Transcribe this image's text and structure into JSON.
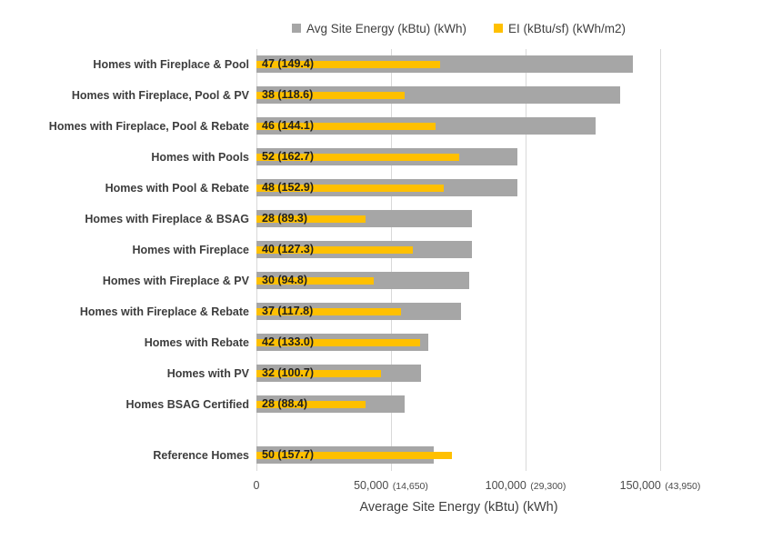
{
  "colors": {
    "site_energy_bar": "#a6a6a6",
    "ei_bar": "#ffc000",
    "gridline": "#d9d9d9",
    "text": "#404040"
  },
  "chart_data": {
    "type": "bar",
    "orientation": "horizontal",
    "xlabel": "Average Site Energy (kBtu) (kWh)",
    "legend_position": "top",
    "grid": true,
    "legend": [
      {
        "label": "Avg Site Energy (kBtu) (kWh)",
        "color": "#a6a6a6"
      },
      {
        "label": "EI (kBtu/sf) (kWh/m2)",
        "color": "#ffc000"
      }
    ],
    "x_axis": {
      "ticks": [
        {
          "value": 0,
          "label": "0",
          "sub": ""
        },
        {
          "value": 50000,
          "label": "50,000",
          "sub": "(14,650)"
        },
        {
          "value": 100000,
          "label": "100,000",
          "sub": "(29,300)"
        },
        {
          "value": 150000,
          "label": "150,000",
          "sub": "(43,950)"
        }
      ],
      "axis_pixel_scale_note": "values estimated from gridlines",
      "ei_to_primary_axis_factor": 1450
    },
    "rows": [
      {
        "category": "Homes with Fireplace & Pool",
        "site_energy_est": 140000,
        "ei": 47,
        "ei_kwh_m2": 149.4,
        "bar_label": "47 (149.4)"
      },
      {
        "category": "Homes with Fireplace, Pool & PV",
        "site_energy_est": 135000,
        "ei": 38,
        "ei_kwh_m2": 118.6,
        "bar_label": "38 (118.6)"
      },
      {
        "category": "Homes with Fireplace, Pool & Rebate",
        "site_energy_est": 126000,
        "ei": 46,
        "ei_kwh_m2": 144.1,
        "bar_label": "46 (144.1)"
      },
      {
        "category": "Homes with Pools",
        "site_energy_est": 97000,
        "ei": 52,
        "ei_kwh_m2": 162.7,
        "bar_label": "52 (162.7)"
      },
      {
        "category": "Homes with Pool & Rebate",
        "site_energy_est": 97000,
        "ei": 48,
        "ei_kwh_m2": 152.9,
        "bar_label": "48 (152.9)"
      },
      {
        "category": "Homes with Fireplace & BSAG",
        "site_energy_est": 80000,
        "ei": 28,
        "ei_kwh_m2": 89.3,
        "bar_label": "28 (89.3)"
      },
      {
        "category": "Homes with Fireplace",
        "site_energy_est": 80000,
        "ei": 40,
        "ei_kwh_m2": 127.3,
        "bar_label": "40 (127.3)"
      },
      {
        "category": "Homes with Fireplace & PV",
        "site_energy_est": 79000,
        "ei": 30,
        "ei_kwh_m2": 94.8,
        "bar_label": "30 (94.8)"
      },
      {
        "category": "Homes with Fireplace & Rebate",
        "site_energy_est": 76000,
        "ei": 37,
        "ei_kwh_m2": 117.8,
        "bar_label": "37 (117.8)"
      },
      {
        "category": "Homes with Rebate",
        "site_energy_est": 64000,
        "ei": 42,
        "ei_kwh_m2": 133.0,
        "bar_label": "42 (133.0)"
      },
      {
        "category": "Homes with PV",
        "site_energy_est": 61000,
        "ei": 32,
        "ei_kwh_m2": 100.7,
        "bar_label": "32 (100.7)"
      },
      {
        "category": "Homes BSAG Certified",
        "site_energy_est": 55000,
        "ei": 28,
        "ei_kwh_m2": 88.4,
        "bar_label": "28 (88.4)"
      },
      {
        "category": "Reference Homes",
        "site_energy_est": 66000,
        "ei": 50,
        "ei_kwh_m2": 157.7,
        "bar_label": "50 (157.7)",
        "gap_before": true
      }
    ]
  }
}
